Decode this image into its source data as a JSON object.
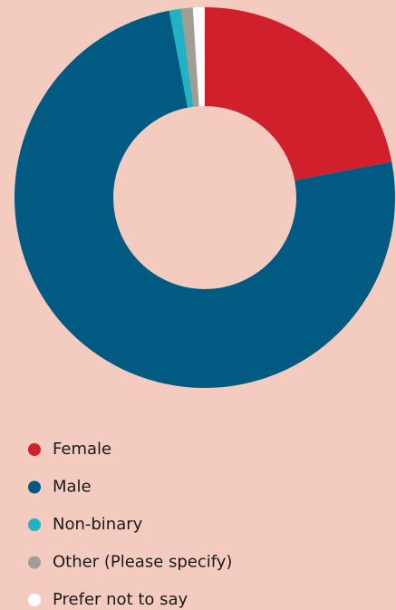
{
  "chart_data": {
    "type": "donut",
    "categories": [
      "Female",
      "Male",
      "Non-binary",
      "Other (Please specify)",
      "Prefer not to say"
    ],
    "values": [
      22,
      75,
      1,
      1,
      1
    ],
    "colors": [
      "#d0202c",
      "#005a82",
      "#1fb3c4",
      "#a29c96",
      "#ffffff"
    ],
    "legend": "bottom"
  }
}
